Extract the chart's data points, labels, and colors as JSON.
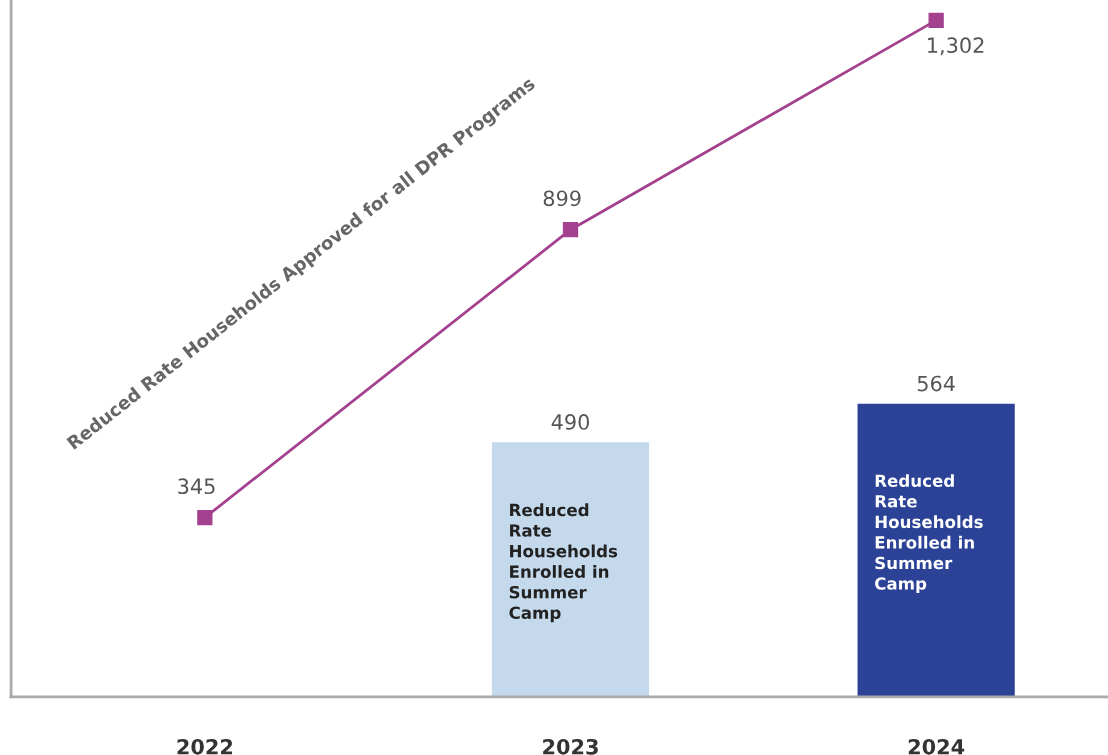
{
  "chart_data": {
    "type": "bar",
    "categories": [
      "2022",
      "2023",
      "2024"
    ],
    "data_labels": true,
    "tick_labels": "x",
    "grid": false,
    "legend": false,
    "series": [
      {
        "name": "Reduced Rate Households Enrolled in Summer Camp",
        "values": [
          null,
          490,
          564
        ],
        "colors": [
          "#c5d9ed",
          "#c5d9ed",
          "#2b4296"
        ]
      },
      {
        "type": "line",
        "name": "Reduced Rate Households Approved for all DPR Programs",
        "color": "#a3418f",
        "values": [
          345,
          899,
          1302
        ],
        "value_labels": [
          "345",
          "899",
          "1,302"
        ],
        "marker": "square"
      }
    ]
  }
}
